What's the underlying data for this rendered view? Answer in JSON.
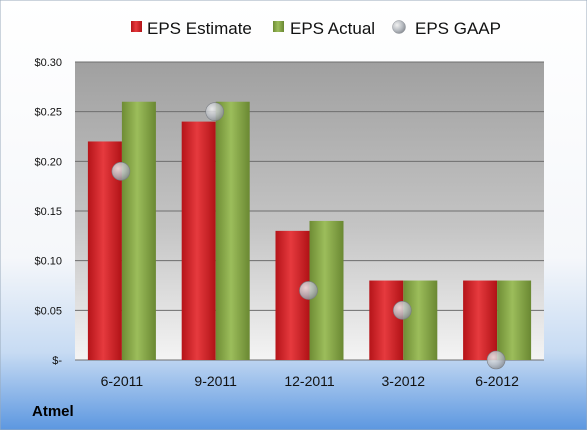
{
  "chart_data": {
    "type": "bar",
    "categories": [
      "6-2011",
      "9-2011",
      "12-2011",
      "3-2012",
      "6-2012"
    ],
    "series": [
      {
        "name": "EPS Estimate",
        "values": [
          0.22,
          0.24,
          0.13,
          0.08,
          0.08
        ],
        "color": "#e0262a"
      },
      {
        "name": "EPS Actual",
        "values": [
          0.26,
          0.26,
          0.14,
          0.08,
          0.08
        ],
        "color": "#8fb04e"
      },
      {
        "name": "EPS GAAP",
        "values": [
          0.19,
          0.25,
          0.07,
          0.05,
          0.0
        ],
        "color": "#b8bcc2",
        "marker": "scatter"
      }
    ],
    "yticks": [
      "$-",
      "$0.05",
      "$0.10",
      "$0.15",
      "$0.20",
      "$0.25",
      "$0.30"
    ],
    "ylim": [
      0,
      0.3
    ],
    "grid": true,
    "legend_position": "top",
    "company_label": "Atmel"
  }
}
